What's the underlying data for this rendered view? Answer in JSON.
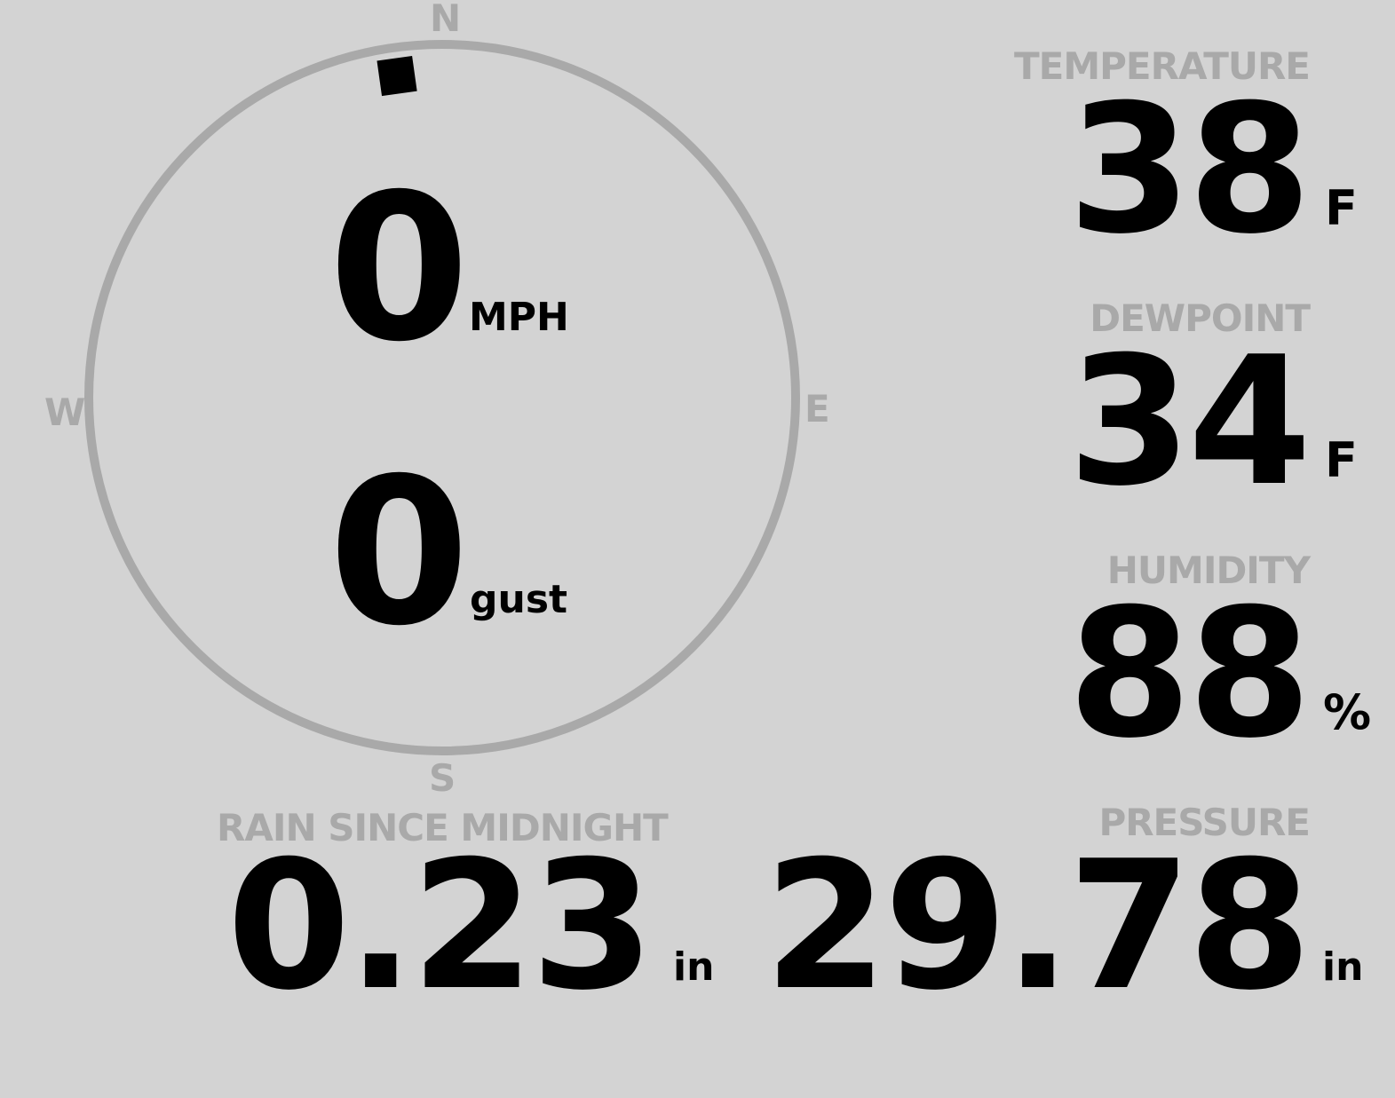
{
  "compass": {
    "north": "N",
    "south": "S",
    "east": "E",
    "west": "W",
    "direction_deg": 352,
    "ring_color": "#a9a9a9",
    "speed": "0",
    "speed_unit": "MPH",
    "gust": "0",
    "gust_unit": "gust"
  },
  "temperature": {
    "label": "TEMPERATURE",
    "value": "38",
    "unit": "F"
  },
  "dewpoint": {
    "label": "DEWPOINT",
    "value": "34",
    "unit": "F"
  },
  "humidity": {
    "label": "HUMIDITY",
    "value": "88",
    "unit": "%"
  },
  "pressure": {
    "label": "PRESSURE",
    "value": "29.78",
    "unit": "in"
  },
  "rain": {
    "label": "RAIN SINCE MIDNIGHT",
    "value": "0.23",
    "unit": "in"
  },
  "colors": {
    "background": "#d3d3d3",
    "label": "#a9a9a9",
    "value": "#000000"
  }
}
